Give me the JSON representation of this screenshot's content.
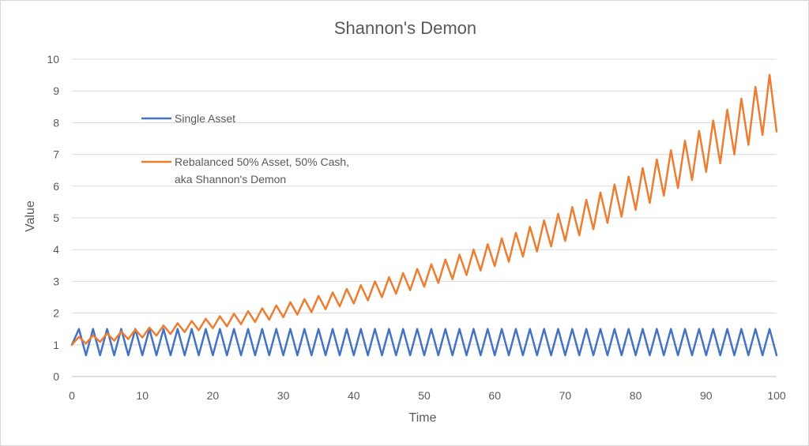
{
  "chart_data": {
    "type": "line",
    "title": "Shannon's Demon",
    "xlabel": "Time",
    "ylabel": "Value",
    "xlim": [
      0,
      100
    ],
    "ylim": [
      0,
      10
    ],
    "x_ticks": [
      0,
      10,
      20,
      30,
      40,
      50,
      60,
      70,
      80,
      90,
      100
    ],
    "y_ticks": [
      0,
      1,
      2,
      3,
      4,
      5,
      6,
      7,
      8,
      9,
      10
    ],
    "grid": "horizontal",
    "legend_position": "upper-left inside plot",
    "series": [
      {
        "name": "Single Asset",
        "color": "#4472C4",
        "x": [
          0,
          1,
          2,
          3,
          4,
          5,
          6,
          7,
          8,
          9,
          10,
          11,
          12,
          13,
          14,
          15,
          16,
          17,
          18,
          19,
          20,
          21,
          22,
          23,
          24,
          25,
          26,
          27,
          28,
          29,
          30,
          31,
          32,
          33,
          34,
          35,
          36,
          37,
          38,
          39,
          40,
          41,
          42,
          43,
          44,
          45,
          46,
          47,
          48,
          49,
          50,
          51,
          52,
          53,
          54,
          55,
          56,
          57,
          58,
          59,
          60,
          61,
          62,
          63,
          64,
          65,
          66,
          67,
          68,
          69,
          70,
          71,
          72,
          73,
          74,
          75,
          76,
          77,
          78,
          79,
          80,
          81,
          82,
          83,
          84,
          85,
          86,
          87,
          88,
          89,
          90,
          91,
          92,
          93,
          94,
          95,
          96,
          97,
          98,
          99,
          100
        ],
        "y": [
          1,
          1.5,
          0.67,
          1.5,
          0.67,
          1.5,
          0.67,
          1.5,
          0.67,
          1.5,
          0.67,
          1.5,
          0.67,
          1.5,
          0.67,
          1.5,
          0.67,
          1.5,
          0.67,
          1.5,
          0.67,
          1.5,
          0.67,
          1.5,
          0.67,
          1.5,
          0.67,
          1.5,
          0.67,
          1.5,
          0.67,
          1.5,
          0.67,
          1.5,
          0.67,
          1.5,
          0.67,
          1.5,
          0.67,
          1.5,
          0.67,
          1.5,
          0.67,
          1.5,
          0.67,
          1.5,
          0.67,
          1.5,
          0.67,
          1.5,
          0.67,
          1.5,
          0.67,
          1.5,
          0.67,
          1.5,
          0.67,
          1.5,
          0.67,
          1.5,
          0.67,
          1.5,
          0.67,
          1.5,
          0.67,
          1.5,
          0.67,
          1.5,
          0.67,
          1.5,
          0.67,
          1.5,
          0.67,
          1.5,
          0.67,
          1.5,
          0.67,
          1.5,
          0.67,
          1.5,
          0.67,
          1.5,
          0.67,
          1.5,
          0.67,
          1.5,
          0.67,
          1.5,
          0.67,
          1.5,
          0.67,
          1.5,
          0.67,
          1.5,
          0.67,
          1.5,
          0.67,
          1.5,
          0.67,
          1.5,
          0.67
        ]
      },
      {
        "name": "Rebalanced 50% Asset, 50% Cash, aka Shannon's Demon",
        "legend_lines": [
          "Rebalanced 50% Asset, 50% Cash,",
          "aka Shannon's Demon"
        ],
        "color": "#ED7D31",
        "x": [
          0,
          1,
          2,
          3,
          4,
          5,
          6,
          7,
          8,
          9,
          10,
          11,
          12,
          13,
          14,
          15,
          16,
          17,
          18,
          19,
          20,
          21,
          22,
          23,
          24,
          25,
          26,
          27,
          28,
          29,
          30,
          31,
          32,
          33,
          34,
          35,
          36,
          37,
          38,
          39,
          40,
          41,
          42,
          43,
          44,
          45,
          46,
          47,
          48,
          49,
          50,
          51,
          52,
          53,
          54,
          55,
          56,
          57,
          58,
          59,
          60,
          61,
          62,
          63,
          64,
          65,
          66,
          67,
          68,
          69,
          70,
          71,
          72,
          73,
          74,
          75,
          76,
          77,
          78,
          79,
          80,
          81,
          82,
          83,
          84,
          85,
          86,
          87,
          88,
          89,
          90,
          91,
          92,
          93,
          94,
          95,
          96,
          97,
          98,
          99,
          100
        ],
        "y": [
          1.0,
          1.25,
          1.04,
          1.3,
          1.09,
          1.36,
          1.13,
          1.42,
          1.18,
          1.48,
          1.23,
          1.54,
          1.29,
          1.61,
          1.34,
          1.68,
          1.4,
          1.75,
          1.46,
          1.82,
          1.52,
          1.9,
          1.58,
          1.98,
          1.65,
          2.06,
          1.72,
          2.15,
          1.79,
          2.24,
          1.87,
          2.34,
          1.95,
          2.44,
          2.03,
          2.54,
          2.12,
          2.65,
          2.21,
          2.76,
          2.3,
          2.88,
          2.4,
          3.0,
          2.5,
          3.13,
          2.61,
          3.26,
          2.72,
          3.39,
          2.83,
          3.54,
          2.95,
          3.69,
          3.07,
          3.84,
          3.2,
          4.0,
          3.34,
          4.17,
          3.48,
          4.35,
          3.62,
          4.53,
          3.78,
          4.72,
          3.94,
          4.92,
          4.1,
          5.13,
          4.27,
          5.34,
          4.45,
          5.57,
          4.64,
          5.8,
          4.84,
          6.05,
          5.04,
          6.3,
          5.25,
          6.57,
          5.47,
          6.84,
          5.7,
          7.13,
          5.94,
          7.43,
          6.19,
          7.74,
          6.45,
          8.07,
          6.72,
          8.41,
          7.0,
          8.76,
          7.3,
          9.13,
          7.61,
          9.51,
          7.72
        ]
      }
    ]
  }
}
